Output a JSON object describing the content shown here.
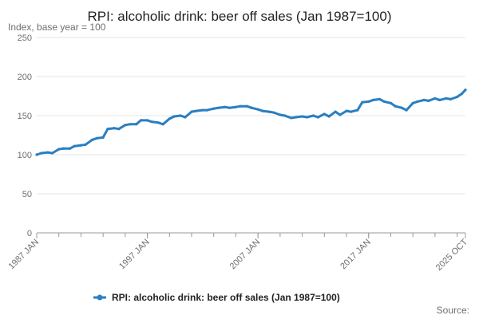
{
  "chart_data": {
    "type": "line",
    "title": "RPI: alcoholic drink: beer off sales (Jan 1987=100)",
    "subtitle": "Index, base year = 100",
    "xlabel": "",
    "ylabel": "",
    "ylim": [
      0,
      250
    ],
    "y_ticks": [
      0,
      50,
      100,
      150,
      200,
      250
    ],
    "x_ticks": [
      "1987 JAN",
      "1997 JAN",
      "2007 JAN",
      "2017 JAN",
      "2025 OCT"
    ],
    "x_range": [
      "1987-01",
      "2025-10"
    ],
    "grid": true,
    "legend_position": "bottom-center",
    "source_label": "Source:",
    "series": [
      {
        "name": "RPI: alcoholic drink: beer off sales (Jan 1987=100)",
        "color": "#2a7fc1",
        "points": [
          [
            "1987-01",
            100
          ],
          [
            "1987-06",
            102
          ],
          [
            "1988-01",
            103
          ],
          [
            "1988-06",
            102
          ],
          [
            "1989-01",
            107
          ],
          [
            "1989-06",
            108
          ],
          [
            "1990-01",
            108
          ],
          [
            "1990-06",
            111
          ],
          [
            "1991-01",
            112
          ],
          [
            "1991-06",
            113
          ],
          [
            "1992-01",
            119
          ],
          [
            "1992-06",
            121
          ],
          [
            "1993-01",
            122
          ],
          [
            "1993-06",
            133
          ],
          [
            "1994-01",
            134
          ],
          [
            "1994-06",
            133
          ],
          [
            "1995-01",
            138
          ],
          [
            "1995-06",
            139
          ],
          [
            "1996-01",
            139
          ],
          [
            "1996-06",
            144
          ],
          [
            "1997-01",
            144
          ],
          [
            "1997-06",
            142
          ],
          [
            "1998-01",
            141
          ],
          [
            "1998-06",
            139
          ],
          [
            "1999-01",
            146
          ],
          [
            "1999-06",
            149
          ],
          [
            "2000-01",
            150
          ],
          [
            "2000-06",
            148
          ],
          [
            "2001-01",
            155
          ],
          [
            "2001-06",
            156
          ],
          [
            "2002-01",
            157
          ],
          [
            "2002-06",
            157
          ],
          [
            "2003-01",
            159
          ],
          [
            "2003-06",
            160
          ],
          [
            "2004-01",
            161
          ],
          [
            "2004-06",
            160
          ],
          [
            "2005-01",
            161
          ],
          [
            "2005-06",
            162
          ],
          [
            "2006-01",
            162
          ],
          [
            "2006-06",
            160
          ],
          [
            "2007-01",
            158
          ],
          [
            "2007-06",
            156
          ],
          [
            "2008-01",
            155
          ],
          [
            "2008-06",
            154
          ],
          [
            "2009-01",
            151
          ],
          [
            "2009-06",
            150
          ],
          [
            "2010-01",
            147
          ],
          [
            "2010-06",
            148
          ],
          [
            "2011-01",
            149
          ],
          [
            "2011-06",
            148
          ],
          [
            "2012-01",
            150
          ],
          [
            "2012-06",
            148
          ],
          [
            "2013-01",
            152
          ],
          [
            "2013-06",
            149
          ],
          [
            "2014-01",
            155
          ],
          [
            "2014-06",
            151
          ],
          [
            "2015-01",
            156
          ],
          [
            "2015-06",
            155
          ],
          [
            "2016-01",
            157
          ],
          [
            "2016-06",
            167
          ],
          [
            "2017-01",
            168
          ],
          [
            "2017-06",
            170
          ],
          [
            "2018-01",
            171
          ],
          [
            "2018-06",
            168
          ],
          [
            "2019-01",
            166
          ],
          [
            "2019-06",
            162
          ],
          [
            "2020-01",
            160
          ],
          [
            "2020-06",
            157
          ],
          [
            "2021-01",
            166
          ],
          [
            "2021-06",
            168
          ],
          [
            "2022-01",
            170
          ],
          [
            "2022-06",
            169
          ],
          [
            "2023-01",
            172
          ],
          [
            "2023-06",
            170
          ],
          [
            "2024-01",
            172
          ],
          [
            "2024-06",
            171
          ],
          [
            "2025-01",
            174
          ],
          [
            "2025-06",
            178
          ],
          [
            "2025-10",
            183
          ]
        ]
      }
    ]
  }
}
